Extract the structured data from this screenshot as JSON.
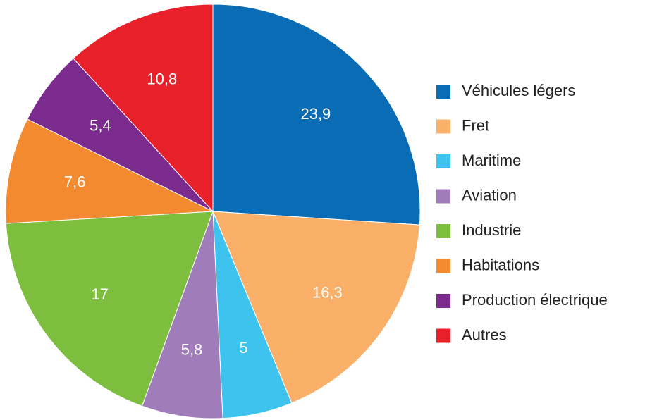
{
  "chart_data": {
    "type": "pie",
    "categories": [
      "Véhicules légers",
      "Fret",
      "Maritime",
      "Aviation",
      "Industrie",
      "Habitations",
      "Production électrique",
      "Autres"
    ],
    "values": [
      23.9,
      16.3,
      5,
      5.8,
      17,
      7.6,
      5.4,
      10.8
    ],
    "value_labels": [
      "23,9",
      "16,3",
      "5",
      "5,8",
      "17",
      "7,6",
      "5,4",
      "10,8"
    ],
    "colors": [
      "#0a6cb5",
      "#fbb06a",
      "#3ec3ee",
      "#a07cba",
      "#7dbe3f",
      "#f38a2f",
      "#7b2a8e",
      "#e8202a"
    ],
    "legend": "right"
  }
}
